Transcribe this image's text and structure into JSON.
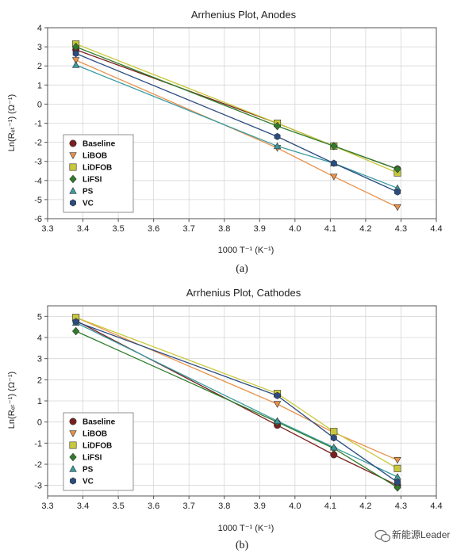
{
  "watermark": "新能源Leader",
  "legend_entries": [
    {
      "name": "Baseline",
      "color": "#7a1f1f",
      "marker": "circle"
    },
    {
      "name": "LiBOB",
      "color": "#e8914a",
      "marker": "triangle-down"
    },
    {
      "name": "LiDFOB",
      "color": "#c8c83c",
      "marker": "square"
    },
    {
      "name": "LiFSI",
      "color": "#2f7d2a",
      "marker": "diamond"
    },
    {
      "name": "PS",
      "color": "#3a9aa0",
      "marker": "triangle-up"
    },
    {
      "name": "VC",
      "color": "#2b4c80",
      "marker": "hexagon"
    }
  ],
  "chart_data": [
    {
      "type": "line",
      "title": "Arrhenius Plot, Anodes",
      "caption": "(a)",
      "xlabel": "1000 T⁻¹ (K⁻¹)",
      "ylabel": "Ln(Rₑₜ⁻¹) (Ω⁻¹)",
      "ylabel_text": "Ln(RCT",
      "xlim": [
        3.3,
        4.4
      ],
      "ylim": [
        -6,
        4
      ],
      "xticks": [
        "3.3",
        "3.4",
        "3.5",
        "3.6",
        "3.7",
        "3.8",
        "3.9",
        "4.0",
        "4.1",
        "4.2",
        "4.3",
        "4.4"
      ],
      "yticks": [
        "-6",
        "-5",
        "-4",
        "-3",
        "-2",
        "-1",
        "0",
        "1",
        "2",
        "3",
        "4"
      ],
      "grid": true,
      "legend_position": "bottom-left",
      "series": [
        {
          "name": "Baseline",
          "x": [
            3.38,
            3.95,
            4.11,
            4.29
          ],
          "y": [
            2.85,
            -1.0,
            -2.2,
            -3.4
          ]
        },
        {
          "name": "LiBOB",
          "x": [
            3.38,
            3.95,
            4.11,
            4.29
          ],
          "y": [
            2.3,
            -2.3,
            -3.8,
            -5.4
          ]
        },
        {
          "name": "LiDFOB",
          "x": [
            3.38,
            3.95,
            4.11,
            4.29
          ],
          "y": [
            3.15,
            -1.0,
            -2.2,
            -3.6
          ]
        },
        {
          "name": "LiFSI",
          "x": [
            3.38,
            3.95,
            4.11,
            4.29
          ],
          "y": [
            3.0,
            -1.15,
            -2.2,
            -3.4
          ]
        },
        {
          "name": "PS",
          "x": [
            3.38,
            3.95,
            4.11,
            4.29
          ],
          "y": [
            2.05,
            -2.2,
            -3.1,
            -4.4
          ]
        },
        {
          "name": "VC",
          "x": [
            3.38,
            3.95,
            4.11,
            4.29
          ],
          "y": [
            2.65,
            -1.7,
            -3.1,
            -4.6
          ]
        }
      ]
    },
    {
      "type": "line",
      "title": "Arrhenius Plot, Cathodes",
      "caption": "(b)",
      "xlabel": "1000 T⁻¹ (K⁻¹)",
      "ylabel": "Ln(Rₑₜ⁻¹) (Ω⁻¹)",
      "ylabel_text": "Ln(RCT",
      "xlim": [
        3.3,
        4.4
      ],
      "ylim": [
        -3.5,
        5.5
      ],
      "xticks": [
        "3.3",
        "3.4",
        "3.5",
        "3.6",
        "3.7",
        "3.8",
        "3.9",
        "4.0",
        "4.1",
        "4.2",
        "4.3",
        "4.4"
      ],
      "yticks": [
        "-3",
        "-2",
        "-1",
        "0",
        "1",
        "2",
        "3",
        "4",
        "5"
      ],
      "grid": true,
      "legend_position": "bottom-left",
      "series": [
        {
          "name": "Baseline",
          "x": [
            3.38,
            3.95,
            4.11,
            4.29
          ],
          "y": [
            4.8,
            -0.15,
            -1.55,
            -3.0
          ]
        },
        {
          "name": "LiBOB",
          "x": [
            3.38,
            3.95,
            4.11,
            4.29
          ],
          "y": [
            4.95,
            0.85,
            -0.5,
            -1.8
          ]
        },
        {
          "name": "LiDFOB",
          "x": [
            3.38,
            3.95,
            4.11,
            4.29
          ],
          "y": [
            4.95,
            1.35,
            -0.45,
            -2.2
          ]
        },
        {
          "name": "LiFSI",
          "x": [
            3.38,
            3.95,
            4.11,
            4.29
          ],
          "y": [
            4.3,
            0.0,
            -1.25,
            -3.1
          ]
        },
        {
          "name": "PS",
          "x": [
            3.38,
            3.95,
            4.11,
            4.29
          ],
          "y": [
            4.7,
            0.05,
            -1.2,
            -2.6
          ]
        },
        {
          "name": "VC",
          "x": [
            3.38,
            3.95,
            4.11,
            4.29
          ],
          "y": [
            4.75,
            1.25,
            -0.75,
            -2.85
          ]
        }
      ]
    }
  ]
}
